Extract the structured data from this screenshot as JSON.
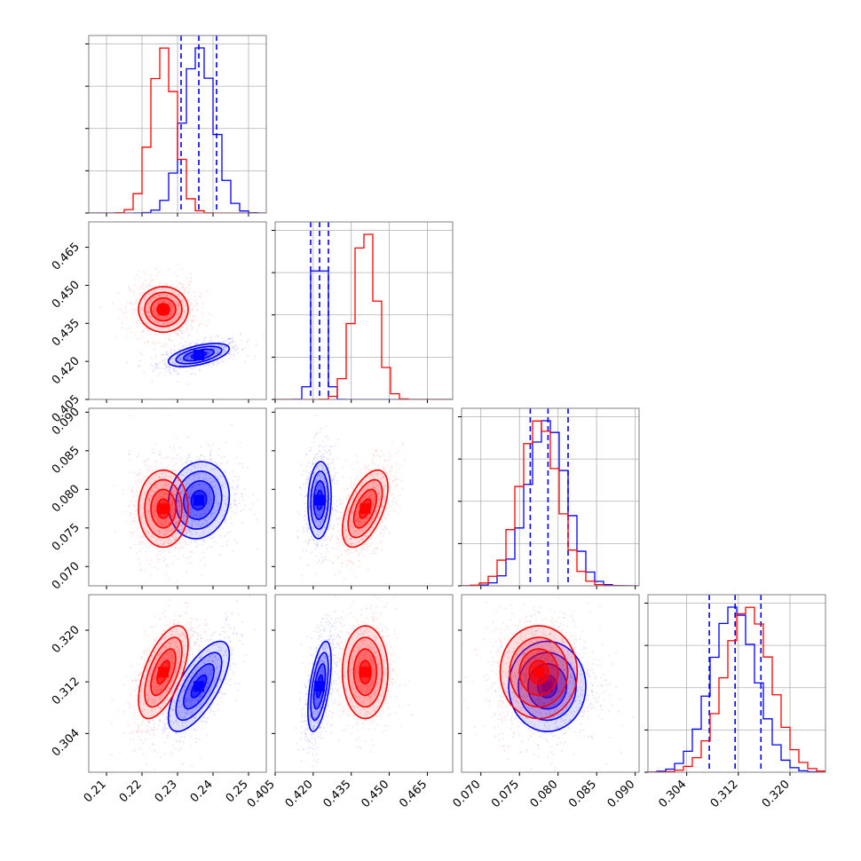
{
  "chart_data": {
    "type": "corner",
    "title": "",
    "grid": true,
    "parameters": [
      {
        "range": [
          0.205,
          0.255
        ],
        "ticks": [
          0.21,
          0.22,
          0.23,
          0.24,
          0.25
        ],
        "tick_labels": [
          "0.21",
          "0.22",
          "0.23",
          "0.24",
          "0.25"
        ]
      },
      {
        "range": [
          0.405,
          0.475
        ],
        "ticks": [
          0.405,
          0.42,
          0.435,
          0.45,
          0.465
        ],
        "tick_labels": [
          "0.405",
          "0.420",
          "0.435",
          "0.450",
          "0.465"
        ]
      },
      {
        "range": [
          0.0675,
          0.0905
        ],
        "ticks": [
          0.07,
          0.075,
          0.08,
          0.085,
          0.09
        ],
        "tick_labels": [
          "0.070",
          "0.075",
          "0.080",
          "0.085",
          "0.090"
        ]
      },
      {
        "range": [
          0.298,
          0.3255
        ],
        "ticks": [
          0.304,
          0.312,
          0.32
        ],
        "tick_labels": [
          "0.304",
          "0.312",
          "0.320"
        ]
      }
    ],
    "series": [
      {
        "color": "#0000ff",
        "mean": [
          0.236,
          0.4225,
          0.0786,
          0.3113
        ],
        "sd": [
          0.0043,
          0.0023,
          0.0025,
          0.0035
        ],
        "corr": [
          [
            0,
            1,
            0.55
          ],
          [
            0,
            3,
            0.7
          ],
          [
            1,
            3,
            0.55
          ],
          [
            0,
            2,
            0.1
          ],
          [
            1,
            2,
            0.1
          ],
          [
            2,
            3,
            0.0
          ]
        ],
        "quantiles": [
          [
            0.231,
            0.236,
            0.241
          ],
          [
            0.419,
            0.4225,
            0.426
          ],
          [
            0.0764,
            0.0787,
            0.0813
          ],
          [
            0.3075,
            0.3115,
            0.3155
          ]
        ]
      },
      {
        "color": "#ff0000",
        "mean": [
          0.226,
          0.4405,
          0.0775,
          0.3135
        ],
        "sd": [
          0.0035,
          0.0045,
          0.0025,
          0.0036
        ],
        "corr": [
          [
            0,
            1,
            0.0
          ],
          [
            0,
            3,
            0.6
          ],
          [
            1,
            3,
            0.0
          ],
          [
            0,
            2,
            0.0
          ],
          [
            1,
            2,
            0.55
          ],
          [
            2,
            3,
            0.0
          ]
        ],
        "quantiles": []
      }
    ]
  }
}
